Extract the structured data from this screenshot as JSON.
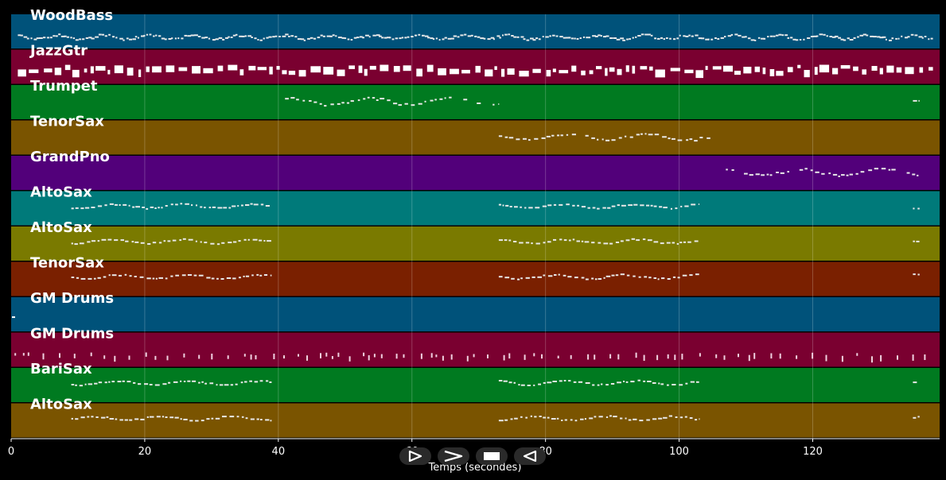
{
  "timeline": {
    "axis_title": "Temps (secondes)",
    "x_min": 0,
    "x_max": 139,
    "ticks": [
      0,
      20,
      40,
      60,
      80,
      100,
      120
    ],
    "tick_labels": [
      "0",
      "20",
      "40",
      "60",
      "80",
      "100",
      "120"
    ]
  },
  "tracks": [
    {
      "name": "WoodBass",
      "color": "#00527a",
      "segments": [
        [
          1,
          138
        ]
      ],
      "pattern": "bass"
    },
    {
      "name": "JazzGtr",
      "color": "#7a0030",
      "segments": [
        [
          1,
          138
        ]
      ],
      "pattern": "chords"
    },
    {
      "name": "Trumpet",
      "color": "#007a20",
      "segments": [
        [
          41,
          73
        ],
        [
          135,
          136
        ]
      ],
      "pattern": "melody"
    },
    {
      "name": "TenorSax",
      "color": "#7a5400",
      "segments": [
        [
          73,
          105
        ]
      ],
      "pattern": "melody"
    },
    {
      "name": "GrandPno",
      "color": "#52007a",
      "segments": [
        [
          107,
          136
        ]
      ],
      "pattern": "melody"
    },
    {
      "name": "AltoSax",
      "color": "#007a7a",
      "segments": [
        [
          9,
          39
        ],
        [
          73,
          103
        ],
        [
          135,
          136
        ]
      ],
      "pattern": "section"
    },
    {
      "name": "AltoSax",
      "color": "#7a7a00",
      "segments": [
        [
          9,
          39
        ],
        [
          73,
          103
        ],
        [
          135,
          136
        ]
      ],
      "pattern": "section"
    },
    {
      "name": "TenorSax",
      "color": "#7a2000",
      "segments": [
        [
          9,
          39
        ],
        [
          73,
          103
        ],
        [
          135,
          136
        ]
      ],
      "pattern": "section"
    },
    {
      "name": "GM Drums",
      "color": "#00527a",
      "segments": [
        [
          0,
          0.5
        ]
      ],
      "pattern": "single"
    },
    {
      "name": "GM Drums",
      "color": "#7a0030",
      "segments": [
        [
          0.5,
          138
        ]
      ],
      "pattern": "drums"
    },
    {
      "name": "BariSax",
      "color": "#007a20",
      "segments": [
        [
          9,
          39
        ],
        [
          73,
          103
        ],
        [
          135,
          136
        ]
      ],
      "pattern": "section"
    },
    {
      "name": "AltoSax",
      "color": "#7a5400",
      "segments": [
        [
          9,
          39
        ],
        [
          73,
          103
        ],
        [
          135,
          136
        ]
      ],
      "pattern": "section"
    }
  ],
  "transport": {
    "buttons": [
      {
        "name": "play-button-icon"
      },
      {
        "name": "fast-forward-icon"
      },
      {
        "name": "stop-icon"
      },
      {
        "name": "rewind-icon"
      }
    ]
  }
}
